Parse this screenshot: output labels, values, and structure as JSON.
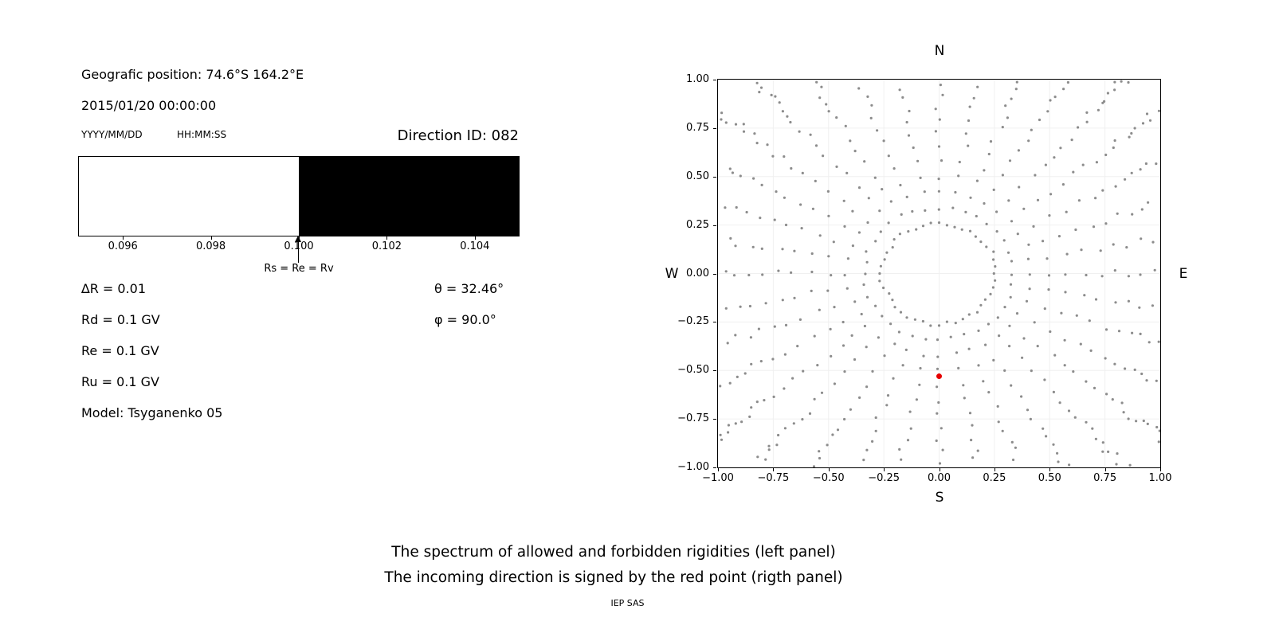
{
  "header": {
    "position": "Geografic position: 74.6°S 164.2°E",
    "datetime": "2015/01/20 00:00:00",
    "date_format": "YYYY/MM/DD",
    "time_format": "HH:MM:SS",
    "direction_id": "Direction ID: 082"
  },
  "params": {
    "delta_r": "∆R = 0.01",
    "rd": "Rd = 0.1 GV",
    "re": "Re = 0.1 GV",
    "ru": "Ru = 0.1 GV",
    "model": "Model: Tsyganenko 05",
    "theta": "θ = 32.46°",
    "phi": "φ = 90.0°"
  },
  "caption": {
    "line1": "The spectrum of allowed and forbidden rigidities (left panel)",
    "line2": "The incoming direction is signed by the red point (rigth panel)",
    "credit": "IEP SAS"
  },
  "chart_data": [
    {
      "type": "bar",
      "name": "rigidity-spectrum",
      "title": "Spectrum of allowed (white) and forbidden (black) rigidities",
      "xlim": [
        0.095,
        0.105
      ],
      "xtick_labels": [
        "0.096",
        "0.098",
        "0.100",
        "0.102",
        "0.104"
      ],
      "segments": [
        {
          "x0": 0.095,
          "x1": 0.1,
          "state": "allowed",
          "color": "#ffffff"
        },
        {
          "x0": 0.1,
          "x1": 0.105,
          "state": "forbidden",
          "color": "#000000"
        }
      ],
      "annotation": {
        "x": 0.1,
        "text": "Rs = Re = Rv"
      }
    },
    {
      "type": "scatter",
      "name": "incoming-direction-map",
      "title": "Incoming direction map (red point = incoming direction)",
      "xlim": [
        -1,
        1
      ],
      "ylim": [
        -1,
        1
      ],
      "xtick_labels": [
        "−1.00",
        "−0.75",
        "−0.50",
        "−0.25",
        "0.00",
        "0.25",
        "0.50",
        "0.75",
        "1.00"
      ],
      "ytick_labels": [
        "1.00",
        "0.75",
        "0.50",
        "0.25",
        "0.00",
        "−0.25",
        "−0.50",
        "−0.75",
        "−1.00"
      ],
      "compass": {
        "north": "N",
        "south": "S",
        "east": "E",
        "west": "W"
      },
      "grid_color": "#f0f0f0",
      "dot_color": "#8c8c8c",
      "red_point": {
        "x": 0.0,
        "y": -0.53,
        "color": "#e60000"
      },
      "gray_pattern": {
        "spoke_angles_deg": [
          0,
          10,
          20,
          30,
          40,
          50,
          60,
          70,
          80,
          90,
          100,
          110,
          120,
          130,
          140,
          150,
          160,
          170,
          180,
          190,
          200,
          210,
          220,
          230,
          240,
          250,
          260,
          270,
          280,
          290,
          300,
          310,
          320,
          330,
          340,
          350
        ],
        "spoke_radii": [
          0.34,
          0.42,
          0.5,
          0.58,
          0.66,
          0.73,
          0.8,
          0.86,
          0.92,
          0.97,
          1.02,
          1.06,
          1.1,
          1.14,
          1.17,
          1.2,
          1.23,
          1.26,
          1.29,
          1.31,
          1.33,
          1.35,
          1.37,
          1.39,
          1.41,
          1.43
        ],
        "ring_radius": 0.26,
        "ring_count": 44,
        "radius_jitter": 0.012,
        "angle_jitter_deg": 1.2
      }
    }
  ]
}
